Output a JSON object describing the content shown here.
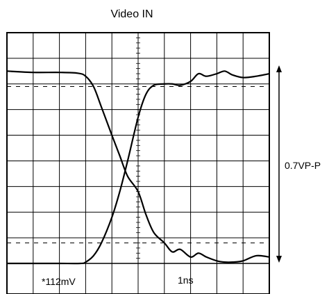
{
  "chart_data": {
    "type": "line",
    "title": "Video IN",
    "amplitude_label": "0.7VP-P",
    "vertical_scale_label": "*112mV",
    "horizontal_scale_label": "1ns",
    "grid": true,
    "divisions": {
      "x": 10,
      "y": 9
    },
    "xlim": [
      0,
      10
    ],
    "ylim": [
      0,
      9
    ],
    "reference_levels": [
      6.9,
      0.8
    ],
    "series": [
      {
        "x": [
          0,
          1,
          2,
          2.7,
          3.0,
          3.3,
          3.6,
          4.0,
          4.3,
          4.6,
          5.0,
          5.3,
          5.6,
          6.0,
          6.3,
          6.6,
          7.0,
          7.3,
          7.6,
          8.0,
          8.3,
          8.6,
          9.0,
          9.5,
          10
        ],
        "y": [
          7.5,
          7.45,
          7.45,
          7.42,
          7.3,
          6.9,
          6.1,
          5.0,
          4.2,
          3.4,
          2.8,
          1.9,
          1.2,
          0.8,
          0.45,
          0.55,
          0.25,
          0.4,
          0.25,
          0.1,
          0.05,
          0.05,
          0.1,
          0.3,
          0.25
        ]
      },
      {
        "x": [
          0,
          1,
          2,
          2.8,
          3.0,
          3.3,
          3.6,
          4.0,
          4.3,
          4.6,
          5.0,
          5.3,
          5.6,
          6.0,
          6.3,
          6.6,
          7.0,
          7.3,
          7.6,
          8.0,
          8.3,
          8.6,
          9.0,
          9.5,
          10
        ],
        "y": [
          0,
          0,
          0,
          0,
          0.05,
          0.3,
          0.8,
          1.8,
          2.8,
          4.0,
          5.7,
          6.6,
          6.95,
          7.0,
          7.0,
          6.95,
          7.1,
          7.4,
          7.3,
          7.4,
          7.5,
          7.35,
          7.25,
          7.3,
          7.4
        ]
      }
    ]
  }
}
